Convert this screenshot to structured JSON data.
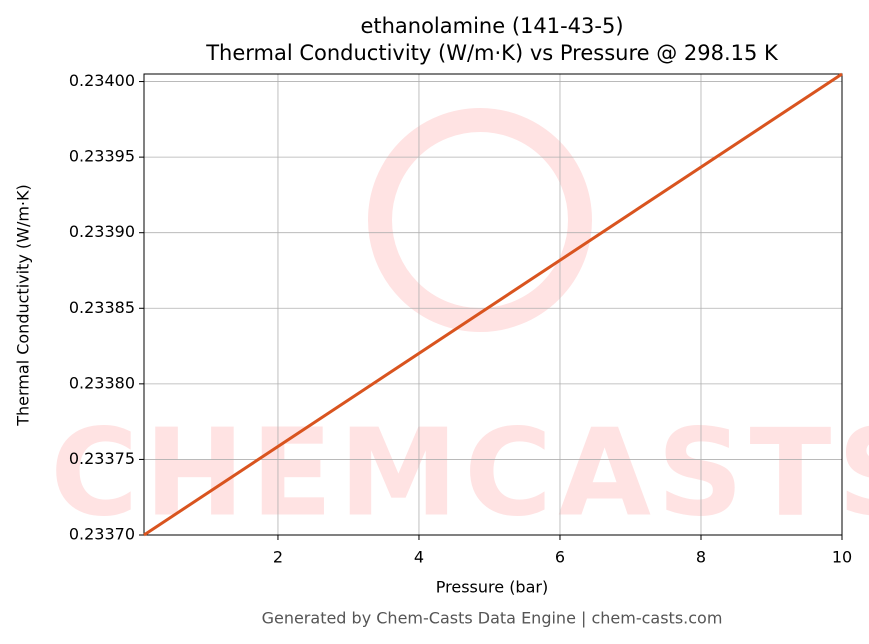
{
  "chart_data": {
    "type": "line",
    "title": "ethanolamine (141-43-5)",
    "subtitle": "Thermal Conductivity (W/m·K) vs Pressure @ 298.15 K",
    "xlabel": "Pressure (bar)",
    "ylabel": "Thermal Conductivity (W/m·K)",
    "watermark": "CHEMCASTS",
    "footer": "Generated by Chem-Casts Data Engine | chem-casts.com",
    "x": [
      0.1,
      10
    ],
    "series": [
      {
        "name": "Thermal Conductivity",
        "color": "#d9541f",
        "values": [
          0.2337,
          0.234005
        ]
      }
    ],
    "xlim": [
      0.1,
      10
    ],
    "ylim": [
      0.2337,
      0.234005
    ],
    "xticks": [
      2,
      4,
      6,
      8,
      10
    ],
    "yticks": [
      {
        "value": 0.2337,
        "label": "0.23370"
      },
      0.23375,
      {
        "value": 0.2338,
        "label": "0.23380"
      },
      0.23385,
      {
        "value": 0.2339,
        "label": "0.23390"
      },
      0.23395,
      {
        "value": 0.234,
        "label": "0.23400"
      }
    ],
    "grid": true
  }
}
